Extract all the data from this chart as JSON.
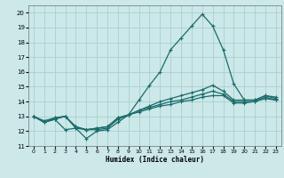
{
  "title": "",
  "xlabel": "Humidex (Indice chaleur)",
  "ylabel": "",
  "xlim": [
    -0.5,
    23.5
  ],
  "ylim": [
    11,
    20.5
  ],
  "yticks": [
    11,
    12,
    13,
    14,
    15,
    16,
    17,
    18,
    19,
    20
  ],
  "xticks": [
    0,
    1,
    2,
    3,
    4,
    5,
    6,
    7,
    8,
    9,
    10,
    11,
    12,
    13,
    14,
    15,
    16,
    17,
    18,
    19,
    20,
    21,
    22,
    23
  ],
  "bg_color": "#cce8e8",
  "grid_color": "#aacfcf",
  "line_color": "#1a6b6b",
  "lines": [
    {
      "x": [
        0,
        1,
        2,
        3,
        4,
        5,
        6,
        7,
        8,
        9,
        10,
        11,
        12,
        13,
        14,
        15,
        16,
        17,
        18,
        19,
        20,
        21,
        22,
        23
      ],
      "y": [
        13.0,
        12.6,
        12.8,
        12.1,
        12.2,
        11.5,
        12.0,
        12.1,
        12.6,
        13.1,
        14.1,
        15.1,
        16.0,
        17.5,
        18.3,
        19.1,
        19.9,
        19.1,
        17.5,
        15.2,
        14.1,
        14.1,
        14.4,
        14.3
      ]
    },
    {
      "x": [
        0,
        1,
        2,
        3,
        4,
        5,
        6,
        7,
        8,
        9,
        10,
        11,
        12,
        13,
        14,
        15,
        16,
        17,
        18,
        19,
        20,
        21,
        22,
        23
      ],
      "y": [
        13.0,
        12.6,
        12.8,
        13.0,
        12.2,
        12.1,
        12.1,
        12.2,
        12.8,
        13.1,
        13.4,
        13.7,
        14.0,
        14.2,
        14.4,
        14.6,
        14.8,
        15.1,
        14.7,
        14.1,
        14.1,
        14.1,
        14.4,
        14.2
      ]
    },
    {
      "x": [
        0,
        1,
        2,
        3,
        4,
        5,
        6,
        7,
        8,
        9,
        10,
        11,
        12,
        13,
        14,
        15,
        16,
        17,
        18,
        19,
        20,
        21,
        22,
        23
      ],
      "y": [
        13.0,
        12.6,
        12.9,
        13.0,
        12.3,
        12.1,
        12.2,
        12.3,
        12.9,
        13.1,
        13.4,
        13.6,
        13.8,
        14.0,
        14.1,
        14.3,
        14.5,
        14.7,
        14.5,
        14.0,
        14.0,
        14.0,
        14.3,
        14.1
      ]
    },
    {
      "x": [
        0,
        1,
        2,
        3,
        4,
        5,
        6,
        7,
        8,
        9,
        10,
        11,
        12,
        13,
        14,
        15,
        16,
        17,
        18,
        19,
        20,
        21,
        22,
        23
      ],
      "y": [
        13.0,
        12.7,
        12.9,
        13.0,
        12.3,
        12.1,
        12.2,
        12.3,
        12.9,
        13.1,
        13.3,
        13.5,
        13.7,
        13.8,
        14.0,
        14.1,
        14.3,
        14.4,
        14.4,
        13.9,
        13.9,
        14.0,
        14.2,
        14.1
      ]
    }
  ]
}
